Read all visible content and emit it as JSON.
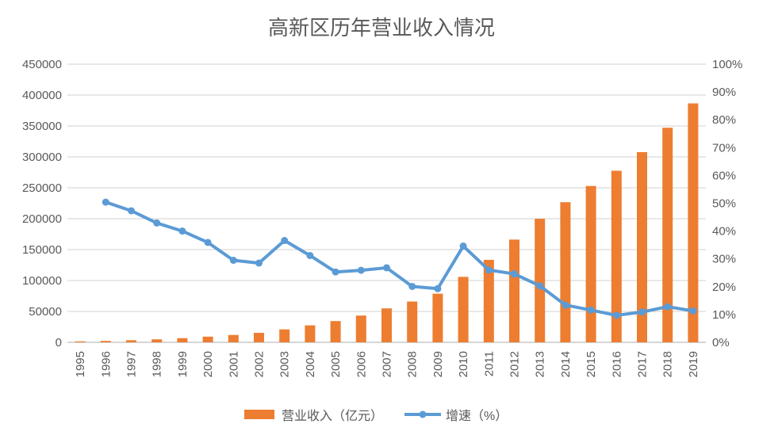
{
  "chart_data": {
    "type": "bar",
    "subtype": "combo-bar-line",
    "title": "高新区历年营业收入情况",
    "categories": [
      "1995",
      "1996",
      "1997",
      "1998",
      "1999",
      "2000",
      "2001",
      "2002",
      "2003",
      "2004",
      "2005",
      "2006",
      "2007",
      "2008",
      "2009",
      "2010",
      "2011",
      "2012",
      "2013",
      "2014",
      "2015",
      "2016",
      "2017",
      "2018",
      "2019"
    ],
    "series": [
      {
        "name": "营业收入（亿元）",
        "type": "bar",
        "axis": "left",
        "color": "#ED7D31",
        "values": [
          1529,
          2300,
          3388,
          4840,
          6775,
          9209,
          11928,
          15326,
          20939,
          27463,
          34416,
          43320,
          54926,
          65986,
          78707,
          105917,
          133434,
          166219,
          199901,
          226674,
          252969,
          277598,
          307756,
          347171,
          386569
        ]
      },
      {
        "name": "增速（%）",
        "type": "line",
        "axis": "right",
        "color": "#5B9BD5",
        "values": [
          null,
          50.4,
          47.3,
          42.9,
          40.0,
          35.9,
          29.5,
          28.5,
          36.6,
          31.2,
          25.3,
          25.9,
          26.8,
          20.1,
          19.3,
          34.6,
          26.0,
          24.6,
          20.3,
          13.4,
          11.6,
          9.7,
          10.9,
          12.8,
          11.3
        ]
      }
    ],
    "left_axis": {
      "min": 0,
      "max": 450000,
      "step": 50000,
      "tick_labels": [
        "0",
        "50000",
        "100000",
        "150000",
        "200000",
        "250000",
        "300000",
        "350000",
        "400000",
        "450000"
      ]
    },
    "right_axis": {
      "min": 0,
      "max": 100,
      "step": 10,
      "tick_labels": [
        "0%",
        "10%",
        "20%",
        "30%",
        "40%",
        "50%",
        "60%",
        "70%",
        "80%",
        "90%",
        "100%"
      ]
    },
    "grid": true,
    "legend_position": "bottom"
  },
  "legend": {
    "revenue_label": "营业收入（亿元）",
    "growth_label": "增速（%）"
  },
  "colors": {
    "bar": "#ED7D31",
    "line": "#5B9BD5",
    "grid": "#D9D9D9",
    "axis_line": "#C8C8C8",
    "text": "#595959",
    "background": "#FFFFFF"
  }
}
